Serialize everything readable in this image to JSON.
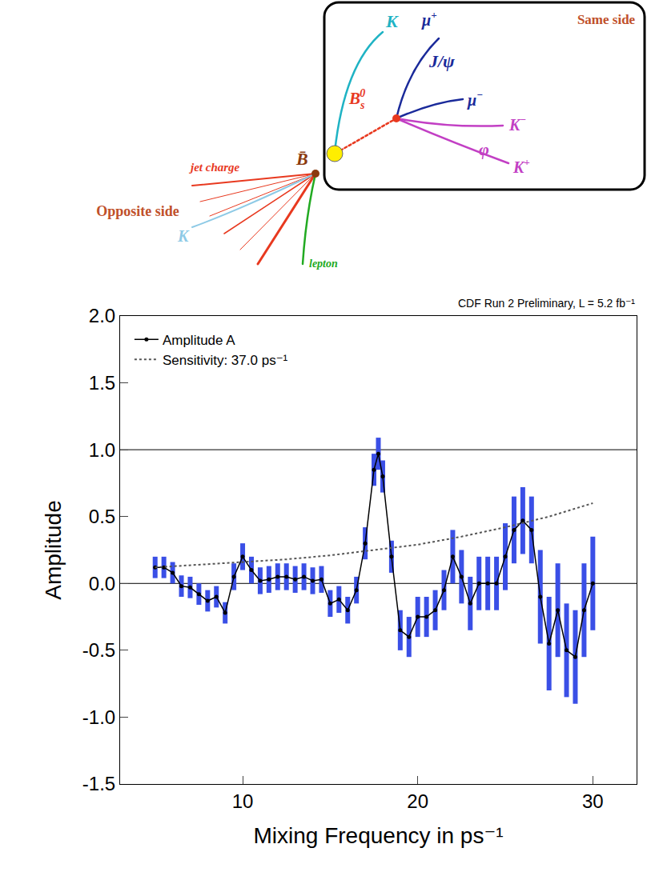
{
  "diagram": {
    "same_side": {
      "title": "Same side",
      "tagging_kaon": {
        "text": "K"
      },
      "b_meson": {
        "text": "B",
        "sub": "s",
        "sup": "0"
      },
      "jpsi": {
        "text": "J/ψ"
      },
      "mu_plus": {
        "text": "μ",
        "sup": "+"
      },
      "mu_minus": {
        "text": "μ",
        "sup": "−"
      },
      "phi": {
        "text": "φ"
      },
      "k_minus": {
        "text": "K",
        "sup": "−"
      },
      "k_plus": {
        "text": "K",
        "sup": "+"
      }
    },
    "opposite_side": {
      "title": "Opposite side",
      "b_meson": {
        "text": "B̄"
      },
      "jet_charge": "jet charge",
      "kaon": {
        "text": "K"
      },
      "lepton": "lepton"
    }
  },
  "chart_data": {
    "type": "scatter",
    "subtitle": "CDF Run 2 Preliminary, L = 5.2 fb⁻¹",
    "x_label": "Mixing Frequency in ps⁻¹",
    "y_label": "Amplitude",
    "xlim": [
      3,
      32.5
    ],
    "xticks": [
      10,
      20,
      30
    ],
    "ylim": [
      -1.5,
      2.0
    ],
    "yticks": [
      -1.5,
      {
        "value": -1.0,
        "label": "-1.0"
      },
      -0.5,
      {
        "value": 0.0,
        "label": "0.0"
      },
      0.5,
      {
        "value": 1.0,
        "label": "1.0"
      },
      1.5,
      {
        "value": 2.0,
        "label": "2.0"
      }
    ],
    "hlines": [
      0,
      1
    ],
    "grid": false,
    "legend": "top-left",
    "series": [
      {
        "name": "Amplitude A",
        "color": "#000000",
        "marker": "circle",
        "line_style": "solid",
        "x": [
          5,
          5.5,
          6,
          6.5,
          7,
          7.5,
          8,
          8.5,
          9,
          9.5,
          10,
          10.5,
          11,
          11.5,
          12,
          12.5,
          13,
          13.5,
          14,
          14.5,
          15,
          15.5,
          16,
          16.5,
          17,
          17.5,
          17.75,
          18,
          18.5,
          19,
          19.5,
          20,
          20.5,
          21,
          21.5,
          22,
          22.5,
          23,
          23.5,
          24,
          24.5,
          25,
          25.5,
          26,
          26.5,
          27,
          27.5,
          28,
          28.5,
          29,
          29.5,
          30
        ],
        "values": [
          0.12,
          0.12,
          0.08,
          -0.02,
          -0.03,
          -0.08,
          -0.13,
          -0.1,
          -0.22,
          0.05,
          0.2,
          0.1,
          0.02,
          0.03,
          0.05,
          0.05,
          0.03,
          0.05,
          0.02,
          0.03,
          -0.15,
          -0.12,
          -0.2,
          -0.05,
          0.3,
          0.85,
          0.97,
          0.8,
          0.2,
          -0.35,
          -0.4,
          -0.25,
          -0.25,
          -0.2,
          -0.05,
          0.2,
          0.05,
          -0.15,
          0,
          0,
          0,
          0.2,
          0.4,
          0.47,
          0.4,
          -0.1,
          -0.45,
          -0.2,
          -0.5,
          -0.55,
          -0.2,
          0
        ],
        "errors": [
          0.08,
          0.08,
          0.08,
          0.08,
          0.08,
          0.08,
          0.08,
          0.08,
          0.08,
          0.1,
          0.1,
          0.1,
          0.1,
          0.1,
          0.1,
          0.1,
          0.1,
          0.1,
          0.1,
          0.1,
          0.1,
          0.1,
          0.1,
          0.1,
          0.12,
          0.12,
          0.12,
          0.12,
          0.12,
          0.15,
          0.15,
          0.15,
          0.15,
          0.15,
          0.15,
          0.2,
          0.2,
          0.2,
          0.2,
          0.2,
          0.2,
          0.25,
          0.25,
          0.25,
          0.25,
          0.35,
          0.35,
          0.35,
          0.35,
          0.35,
          0.35,
          0.35
        ]
      },
      {
        "name": "Sensitivity: 37.0 ps⁻¹",
        "color": "#555555",
        "marker": "none",
        "line_style": "dotted",
        "x": [
          5,
          7.5,
          10,
          12.5,
          15,
          17.5,
          20,
          22.5,
          25,
          27.5,
          30
        ],
        "values": [
          0.12,
          0.14,
          0.16,
          0.18,
          0.21,
          0.25,
          0.29,
          0.35,
          0.42,
          0.5,
          0.6
        ]
      }
    ]
  }
}
